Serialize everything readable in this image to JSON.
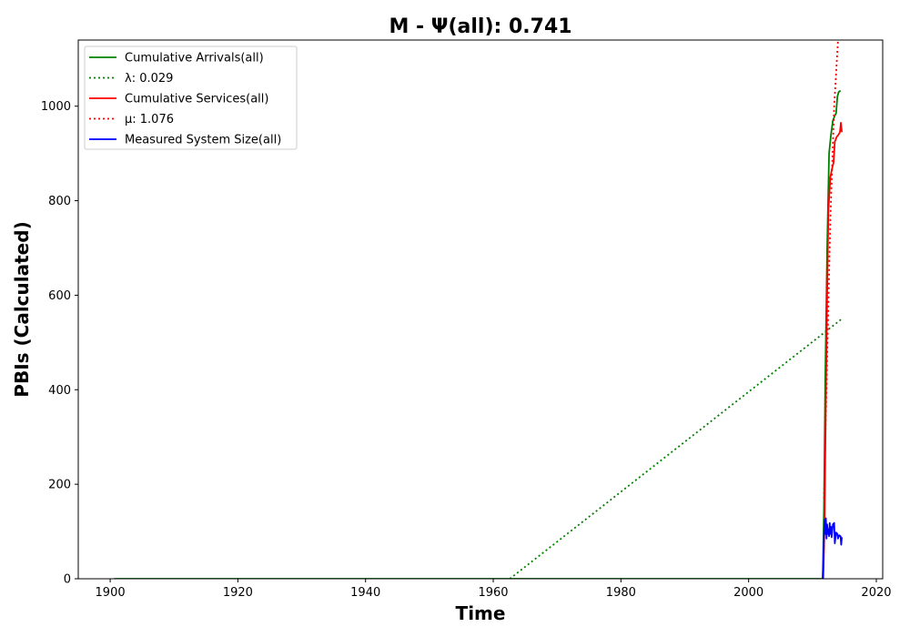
{
  "chart_data": {
    "type": "line",
    "title": "M -  Ψ(all): 0.741",
    "xlabel": "Time",
    "ylabel": "PBIs (Calculated)",
    "xlim": [
      1895,
      2021
    ],
    "ylim": [
      0,
      1140
    ],
    "xticks": [
      {
        "value": 1900,
        "label": "1900"
      },
      {
        "value": 1920,
        "label": "1920"
      },
      {
        "value": 1940,
        "label": "1940"
      },
      {
        "value": 1960,
        "label": "1960"
      },
      {
        "value": 1980,
        "label": "1980"
      },
      {
        "value": 2000,
        "label": "2000"
      },
      {
        "value": 2020,
        "label": "2020"
      }
    ],
    "yticks": [
      {
        "value": 0,
        "label": "0"
      },
      {
        "value": 200,
        "label": "200"
      },
      {
        "value": 400,
        "label": "400"
      },
      {
        "value": 600,
        "label": "600"
      },
      {
        "value": 800,
        "label": "800"
      },
      {
        "value": 1000,
        "label": "1000"
      }
    ],
    "grid": false,
    "legend_position": "upper-left",
    "series": [
      {
        "id": "cum-arrivals",
        "name": "Cumulative Arrivals(all)",
        "color": "#008000",
        "style": "solid",
        "points": [
          [
            1900.6,
            0
          ],
          [
            2011.6,
            0
          ],
          [
            2011.8,
            150
          ],
          [
            2012.0,
            420
          ],
          [
            2012.3,
            700
          ],
          [
            2012.6,
            900
          ],
          [
            2012.9,
            940
          ],
          [
            2013.2,
            970
          ],
          [
            2013.5,
            980
          ],
          [
            2013.7,
            985
          ],
          [
            2013.9,
            1020
          ],
          [
            2014.1,
            1030
          ],
          [
            2014.4,
            1033
          ]
        ]
      },
      {
        "id": "lambda-line",
        "name": "λ: 0.029",
        "color": "#008000",
        "style": "dotted",
        "points": [
          [
            1962.6,
            0
          ],
          [
            2014.6,
            550
          ]
        ]
      },
      {
        "id": "cum-services",
        "name": "Cumulative Services(all)",
        "color": "#ff0000",
        "style": "solid",
        "points": [
          [
            2011.7,
            0
          ],
          [
            2011.9,
            120
          ],
          [
            2012.1,
            380
          ],
          [
            2012.3,
            600
          ],
          [
            2012.5,
            780
          ],
          [
            2012.8,
            850
          ],
          [
            2013.1,
            870
          ],
          [
            2013.3,
            880
          ],
          [
            2013.5,
            925
          ],
          [
            2013.8,
            935
          ],
          [
            2014.1,
            940
          ],
          [
            2014.3,
            945
          ],
          [
            2014.45,
            965
          ],
          [
            2014.6,
            945
          ]
        ]
      },
      {
        "id": "mu-line",
        "name": "μ: 1.076",
        "color": "#ff0000",
        "style": "dotted",
        "points": [
          [
            2011.8,
            170
          ],
          [
            2012.8,
            760
          ],
          [
            2013.4,
            1000
          ],
          [
            2014.0,
            1140
          ]
        ]
      },
      {
        "id": "system-size",
        "name": "Measured System Size(all)",
        "color": "#0000ff",
        "style": "solid",
        "points": [
          [
            2011.6,
            0
          ],
          [
            2011.7,
            30
          ],
          [
            2011.8,
            90
          ],
          [
            2011.9,
            125
          ],
          [
            2012.0,
            95
          ],
          [
            2012.1,
            128
          ],
          [
            2012.2,
            85
          ],
          [
            2012.3,
            115
          ],
          [
            2012.4,
            95
          ],
          [
            2012.5,
            105
          ],
          [
            2012.6,
            90
          ],
          [
            2012.7,
            118
          ],
          [
            2012.8,
            95
          ],
          [
            2012.9,
            110
          ],
          [
            2013.0,
            88
          ],
          [
            2013.2,
            115
          ],
          [
            2013.4,
            118
          ],
          [
            2013.5,
            75
          ],
          [
            2013.7,
            98
          ],
          [
            2013.9,
            95
          ],
          [
            2014.0,
            85
          ],
          [
            2014.2,
            92
          ],
          [
            2014.4,
            90
          ],
          [
            2014.5,
            72
          ],
          [
            2014.6,
            88
          ]
        ]
      }
    ]
  }
}
